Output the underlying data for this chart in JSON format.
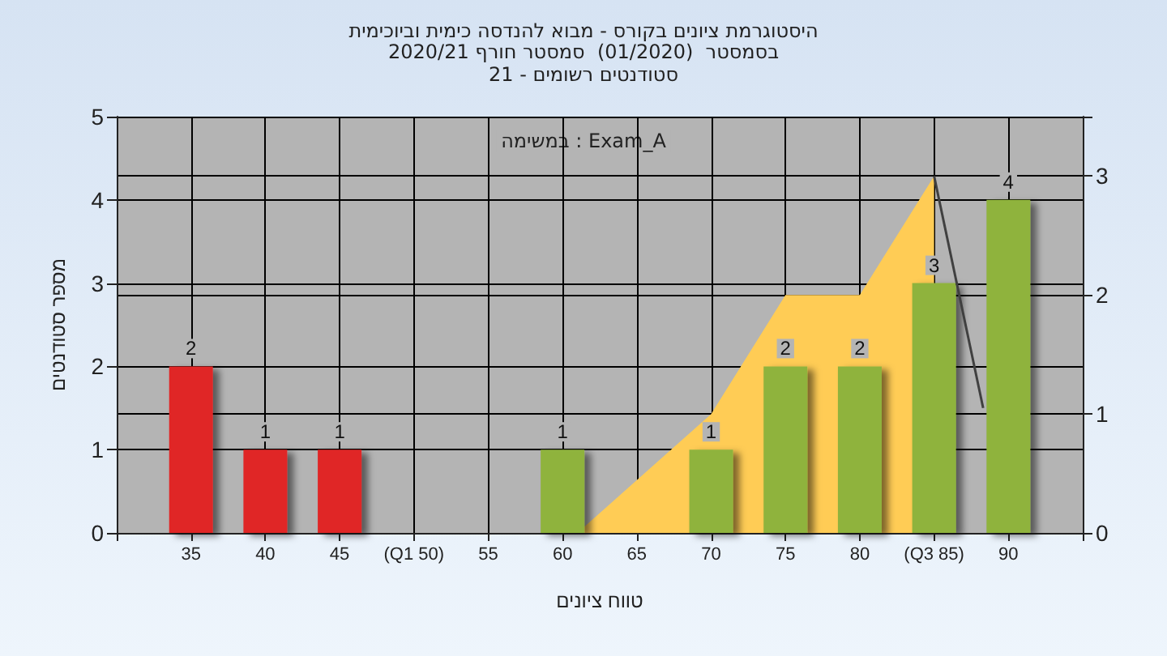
{
  "chart_data": {
    "type": "bar",
    "title": "היסטוגרמת ציונים בקורס - מבוא להנדסה כימית וביוכימית",
    "subtitle": "בסמסטר  (01/2020)  סמסטר חורף 2020/21\nסטודנטים רשומים - 21",
    "xlabel": "טווח ציונים",
    "ylabel": "מספר סטודנטים",
    "annotations": [
      "במשימה : Exam_A"
    ],
    "xlim": [
      30,
      95
    ],
    "xticks": [
      {
        "value": 30,
        "label": null
      },
      35,
      40,
      45,
      {
        "value": 50,
        "label": "(Q1 50)"
      },
      55,
      60,
      65,
      70,
      75,
      80,
      {
        "value": 85,
        "label": "(Q3 85)"
      },
      90,
      {
        "value": 95,
        "label": null
      }
    ],
    "ylim": [
      0,
      5
    ],
    "yticks": [
      0,
      1,
      2,
      3,
      4,
      5
    ],
    "y2lim": [
      0,
      3.5
    ],
    "y2ticks": [
      0,
      1,
      2,
      3
    ],
    "grid": true,
    "marker": "none",
    "series": [
      {
        "x": [
          35,
          40,
          45,
          60,
          70,
          75,
          80,
          85,
          90
        ],
        "values": [
          2,
          1,
          1,
          1,
          1,
          2,
          2,
          3,
          4
        ],
        "value_labels": [
          "2",
          "1",
          "1",
          "1",
          "1",
          "2",
          "2",
          "3",
          "4"
        ],
        "colors": [
          "#e02828",
          "#e02828",
          "#e02828",
          "#8fb33c",
          "#8fb33c",
          "#8fb33c",
          "#8fb33c",
          "#8fb33c",
          "#8fb33c"
        ]
      },
      {
        "type": "area",
        "axis": "y2",
        "color": "#ffcc55",
        "x": [
          61,
          70,
          75,
          80,
          85
        ],
        "values": [
          0,
          1,
          2,
          2,
          3
        ]
      },
      {
        "type": "line",
        "axis": "y2",
        "color": "#404040",
        "x": [
          85,
          88.3
        ],
        "values": [
          3,
          1.05
        ]
      }
    ]
  }
}
